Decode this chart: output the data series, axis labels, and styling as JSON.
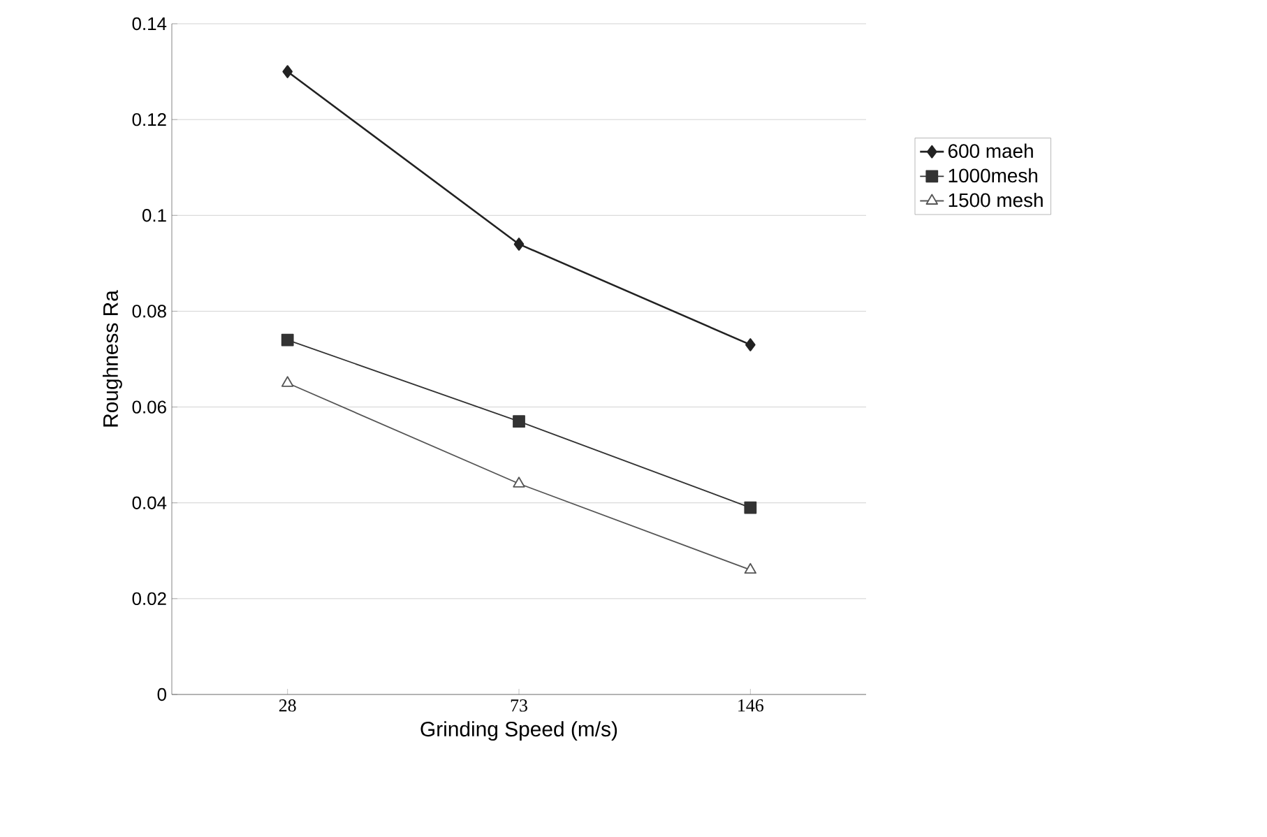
{
  "chart_data": {
    "type": "line",
    "xlabel": "Grinding Speed (m/s)",
    "ylabel": "Roughness Ra",
    "categories": [
      "28",
      "73",
      "146"
    ],
    "series": [
      {
        "name": "600 maeh",
        "color": "#222222",
        "marker": "diamond",
        "values": [
          0.13,
          0.094,
          0.073
        ]
      },
      {
        "name": "1000mesh",
        "color": "#333333",
        "marker": "square",
        "values": [
          0.074,
          0.057,
          0.039
        ]
      },
      {
        "name": "1500 mesh",
        "color": "#555555",
        "marker": "triangle",
        "values": [
          0.065,
          0.044,
          0.026
        ]
      }
    ],
    "ylim": [
      0,
      0.14
    ],
    "yticks": [
      0,
      0.02,
      0.04,
      0.06,
      0.08,
      0.1,
      0.12,
      0.14
    ],
    "grid": "y",
    "legend": "right",
    "line_style": "solid"
  }
}
